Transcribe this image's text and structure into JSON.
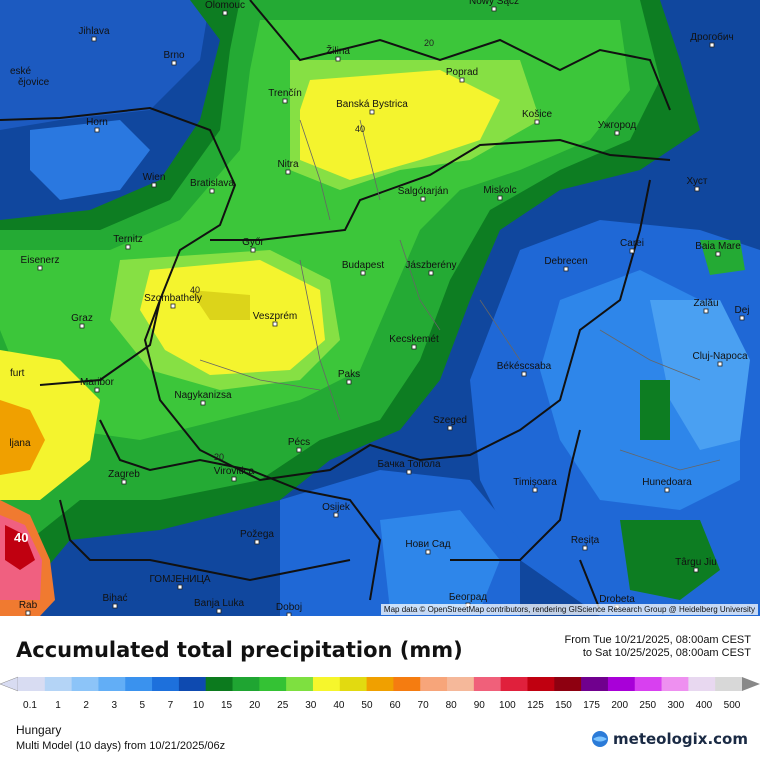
{
  "map": {
    "cities": [
      {
        "name": "Olomouc"
      },
      {
        "name": "Nowy Sącz"
      },
      {
        "name": "Jihlava"
      },
      {
        "name": "Brno"
      },
      {
        "name": "Žilina"
      },
      {
        "name": "Poprad"
      },
      {
        "name": "Дрогобич"
      },
      {
        "name": "Trenčín"
      },
      {
        "name": "Banská Bystrica"
      },
      {
        "name": "Košice"
      },
      {
        "name": "Ужгород"
      },
      {
        "name": "Horn"
      },
      {
        "name": "Wien"
      },
      {
        "name": "Bratislava"
      },
      {
        "name": "Nitra"
      },
      {
        "name": "Salgótarján"
      },
      {
        "name": "Miskolc"
      },
      {
        "name": "Хуст"
      },
      {
        "name": "Ternitz"
      },
      {
        "name": "Győr"
      },
      {
        "name": "Carei"
      },
      {
        "name": "Baia Mare"
      },
      {
        "name": "Eisenerz"
      },
      {
        "name": "Budapest"
      },
      {
        "name": "Jászberény"
      },
      {
        "name": "Debrecen"
      },
      {
        "name": "Szombathely"
      },
      {
        "name": "Graz"
      },
      {
        "name": "Veszprém"
      },
      {
        "name": "Zalău"
      },
      {
        "name": "Dej"
      },
      {
        "name": "Kecskemét"
      },
      {
        "name": "Cluj-Napoca"
      },
      {
        "name": "Maribor"
      },
      {
        "name": "Paks"
      },
      {
        "name": "Békéscsaba"
      },
      {
        "name": "Nagykanizsa"
      },
      {
        "name": "Szeged"
      },
      {
        "name": "Pécs"
      },
      {
        "name": "Бачка Топола"
      },
      {
        "name": "Zagreb"
      },
      {
        "name": "Virovitica"
      },
      {
        "name": "Timișoara"
      },
      {
        "name": "Hunedoara"
      },
      {
        "name": "Osijek"
      },
      {
        "name": "Požega"
      },
      {
        "name": "Нови Сад"
      },
      {
        "name": "Reșița"
      },
      {
        "name": "Târgu Jiu"
      },
      {
        "name": "ГОМЈЕНИЦА"
      },
      {
        "name": "Bihać"
      },
      {
        "name": "Banja Luka"
      },
      {
        "name": "Doboj"
      },
      {
        "name": "Београд"
      },
      {
        "name": "Drobeta"
      },
      {
        "name": "Rab"
      },
      {
        "name": "ljana"
      },
      {
        "name": "furt"
      },
      {
        "name": "eské"
      },
      {
        "name": "ějovice"
      }
    ],
    "contour_labels": [
      "20",
      "40",
      "40",
      "20",
      "40"
    ],
    "attribution": "Map data © OpenStreetMap contributors, rendering GIScience Research Group @ Heidelberg University"
  },
  "legend": {
    "title": "Accumulated total precipitation (mm)",
    "period_from": "From Tue 10/21/2025, 08:00am CEST",
    "period_to": "to Sat 10/25/2025, 08:00am CEST",
    "ticks": [
      "0.1",
      "1",
      "2",
      "3",
      "5",
      "7",
      "10",
      "15",
      "20",
      "25",
      "30",
      "40",
      "50",
      "60",
      "70",
      "80",
      "90",
      "100",
      "125",
      "150",
      "175",
      "200",
      "250",
      "300",
      "400",
      "500"
    ],
    "colors": [
      "#d8dcf2",
      "#b4d4f6",
      "#8cc4f8",
      "#62aef6",
      "#3a92ee",
      "#1d70dc",
      "#0e4ab0",
      "#0c7a1e",
      "#1fa532",
      "#34c234",
      "#7ee040",
      "#f6f62c",
      "#e2da10",
      "#f0a000",
      "#f57c10",
      "#f7a57a",
      "#f5b89a",
      "#f0607a",
      "#e0203c",
      "#c00010",
      "#8e0010",
      "#70008e",
      "#a800d8",
      "#d840f0",
      "#ee90f0",
      "#e8d8f0",
      "#d8d8d8"
    ],
    "region": "Hungary",
    "model": "Multi Model (10 days) from 10/21/2025/06z",
    "brand": "meteologix.com"
  }
}
